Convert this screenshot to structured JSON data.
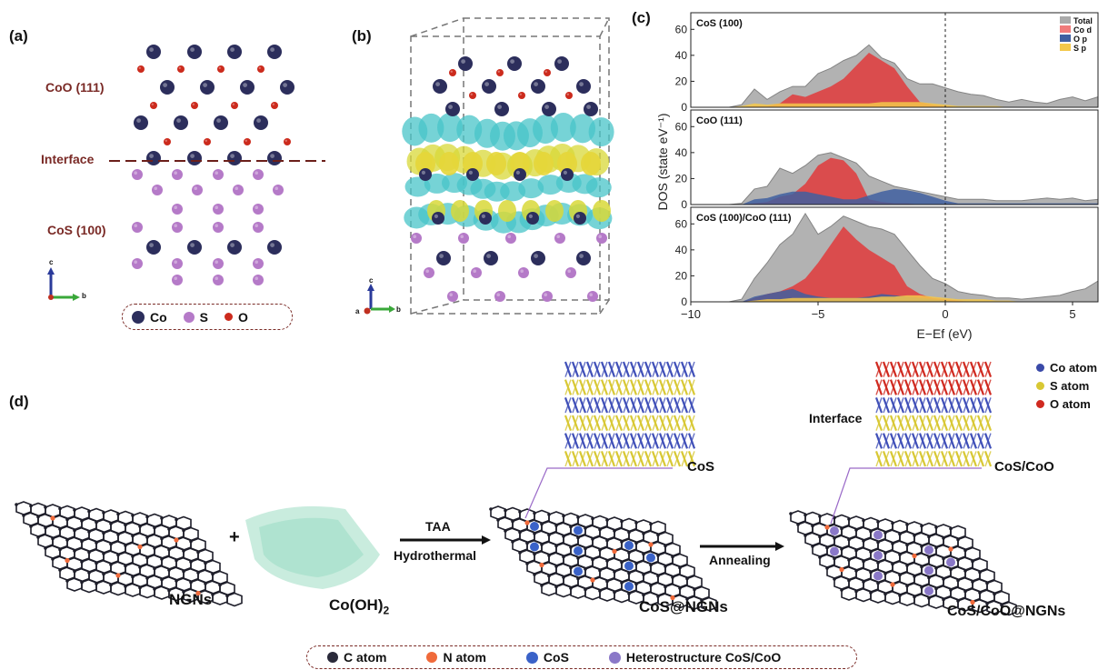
{
  "panel_a": {
    "label": "(a)",
    "coo_label": "CoO (111)",
    "interface_label": "Interface",
    "cos_label": "CoS (100)",
    "axis_c": "c",
    "axis_b": "b",
    "legend": [
      {
        "label": "Co",
        "color": "#2c2e5c"
      },
      {
        "label": "S",
        "color": "#b57ac8"
      },
      {
        "label": "O",
        "color": "#cc2b1d"
      }
    ]
  },
  "panel_b": {
    "label": "(b)",
    "axis_c": "c",
    "axis_a": "a",
    "axis_b": "b"
  },
  "panel_c": {
    "label": "(c)",
    "xlabel": "E−Ef (eV)",
    "ylabel": "DOS (state eV⁻¹)",
    "legend": [
      {
        "label": "Total",
        "color": "#aaaaaa"
      },
      {
        "label": "Co d",
        "color": "#f07b7b"
      },
      {
        "label": "O p",
        "color": "#3f5fa0"
      },
      {
        "label": "S p",
        "color": "#f3c84b"
      }
    ]
  },
  "chart_data": {
    "type": "area",
    "xlabel": "E−Ef (eV)",
    "ylabel": "DOS (state eV⁻¹)",
    "xlim": [
      -10,
      6
    ],
    "xticks": [
      -10,
      -5,
      0,
      5
    ],
    "ylim": [
      0,
      70
    ],
    "yticks": [
      0,
      20,
      40,
      60
    ],
    "panels": [
      {
        "title": "CoS (100)",
        "x": [
          -10,
          -8.5,
          -8,
          -7.5,
          -7,
          -6.5,
          -6,
          -5.5,
          -5,
          -4.5,
          -4,
          -3.5,
          -3,
          -2.5,
          -2,
          -1.5,
          -1,
          -0.5,
          0,
          0.5,
          1,
          1.5,
          2,
          2.5,
          3,
          3.5,
          4,
          4.5,
          5,
          5.5,
          6
        ],
        "series": [
          {
            "name": "Total",
            "values": [
              0,
              0,
              2,
              14,
              6,
              12,
              16,
              16,
              26,
              30,
              36,
              40,
              48,
              38,
              34,
              22,
              18,
              18,
              15,
              12,
              10,
              9,
              6,
              4,
              6,
              4,
              3,
              6,
              8,
              5,
              8
            ]
          },
          {
            "name": "Co d",
            "values": [
              0,
              0,
              0,
              1,
              1,
              3,
              10,
              8,
              12,
              16,
              22,
              32,
              42,
              36,
              30,
              16,
              4,
              2,
              1,
              0,
              0,
              0,
              0,
              0,
              0,
              0,
              0,
              0,
              0,
              0,
              0
            ]
          },
          {
            "name": "O p",
            "values": [
              0,
              0,
              0,
              0,
              0,
              0,
              0,
              0,
              0,
              0,
              0,
              0,
              0,
              0,
              0,
              0,
              0,
              0,
              0,
              0,
              0,
              0,
              0,
              0,
              0,
              0,
              0,
              0,
              0,
              0,
              0
            ]
          },
          {
            "name": "S p",
            "values": [
              0,
              0,
              1,
              3,
              2,
              3,
              3,
              3,
              3,
              3,
              3,
              3,
              3,
              4,
              4,
              4,
              4,
              3,
              2,
              1,
              1,
              1,
              1,
              0,
              0,
              0,
              0,
              0,
              0,
              0,
              0
            ]
          }
        ]
      },
      {
        "title": "CoO (111)",
        "x": [
          -10,
          -8.5,
          -8,
          -7.5,
          -7,
          -6.5,
          -6,
          -5.5,
          -5,
          -4.5,
          -4,
          -3.5,
          -3,
          -2.5,
          -2,
          -1.5,
          -1,
          -0.5,
          0,
          0.5,
          1,
          1.5,
          2,
          2.5,
          3,
          3.5,
          4,
          4.5,
          5,
          5.5,
          6
        ],
        "series": [
          {
            "name": "Total",
            "values": [
              0,
              0,
              1,
              12,
              14,
              28,
              24,
              30,
              38,
              40,
              36,
              32,
              22,
              18,
              14,
              12,
              10,
              8,
              6,
              4,
              4,
              4,
              3,
              3,
              3,
              4,
              5,
              4,
              5,
              3,
              4
            ]
          },
          {
            "name": "Co d",
            "values": [
              0,
              0,
              0,
              1,
              2,
              6,
              8,
              16,
              30,
              36,
              34,
              24,
              4,
              2,
              1,
              1,
              0,
              0,
              0,
              0,
              0,
              0,
              0,
              0,
              0,
              0,
              0,
              0,
              0,
              0,
              0
            ]
          },
          {
            "name": "O p",
            "values": [
              0,
              0,
              0,
              4,
              5,
              8,
              10,
              10,
              8,
              6,
              4,
              4,
              7,
              10,
              12,
              11,
              9,
              6,
              3,
              1,
              1,
              1,
              1,
              1,
              1,
              1,
              1,
              1,
              1,
              1,
              1
            ]
          },
          {
            "name": "S p",
            "values": [
              0,
              0,
              0,
              0,
              0,
              0,
              0,
              0,
              0,
              0,
              0,
              0,
              0,
              0,
              0,
              0,
              0,
              0,
              0,
              0,
              0,
              0,
              0,
              0,
              0,
              0,
              0,
              0,
              0,
              0,
              0
            ]
          }
        ]
      },
      {
        "title": "CoS (100)/CoO (111)",
        "x": [
          -10,
          -8.5,
          -8,
          -7.5,
          -7,
          -6.5,
          -6,
          -5.5,
          -5,
          -4.5,
          -4,
          -3.5,
          -3,
          -2.5,
          -2,
          -1.5,
          -1,
          -0.5,
          0,
          0.5,
          1,
          1.5,
          2,
          2.5,
          3,
          3.5,
          4,
          4.5,
          5,
          5.5,
          6
        ],
        "series": [
          {
            "name": "Total",
            "values": [
              0,
              0,
              2,
              18,
              30,
              44,
              52,
              68,
              52,
              58,
              66,
              62,
              58,
              56,
              52,
              40,
              28,
              18,
              14,
              8,
              6,
              5,
              3,
              3,
              2,
              3,
              4,
              5,
              8,
              10,
              16
            ]
          },
          {
            "name": "Co d",
            "values": [
              0,
              0,
              0,
              3,
              6,
              8,
              12,
              18,
              30,
              44,
              58,
              48,
              40,
              34,
              28,
              12,
              6,
              3,
              2,
              1,
              0,
              0,
              0,
              0,
              0,
              0,
              0,
              0,
              0,
              0,
              0
            ]
          },
          {
            "name": "O p",
            "values": [
              0,
              0,
              0,
              4,
              6,
              8,
              10,
              6,
              4,
              3,
              3,
              3,
              4,
              6,
              5,
              4,
              3,
              2,
              1,
              0,
              0,
              0,
              0,
              0,
              0,
              0,
              0,
              0,
              0,
              0,
              0
            ]
          },
          {
            "name": "S p",
            "values": [
              0,
              0,
              0,
              1,
              2,
              2,
              3,
              3,
              3,
              3,
              3,
              3,
              3,
              4,
              4,
              5,
              5,
              4,
              3,
              2,
              2,
              2,
              1,
              1,
              0,
              0,
              0,
              0,
              0,
              0,
              0
            ]
          }
        ]
      }
    ]
  },
  "panel_d": {
    "label": "(d)",
    "ngns_label": "NGNs",
    "plus": "+",
    "coh_label_main": "Co(OH)",
    "coh_label_sub": "2",
    "step1_top": "TAA",
    "step1_bottom": "Hydrothermal",
    "cos_callout": "CoS",
    "cos_ngns_label": "CoS@NGNs",
    "step2": "Annealing",
    "interface_label": "Interface",
    "cosco_callout": "CoS/CoO",
    "cosco_ngns_label": "CoS/CoO@NGNs",
    "atom_legend": [
      {
        "label": "Co atom",
        "color": "#3a4aa8"
      },
      {
        "label": "S atom",
        "color": "#d8c834"
      },
      {
        "label": "O atom",
        "color": "#d02a20"
      }
    ],
    "bottom_legend": [
      {
        "label": "C atom",
        "color": "#2a2a3a"
      },
      {
        "label": "N atom",
        "color": "#f06a3a"
      },
      {
        "label": "CoS",
        "color": "#3a62c8"
      },
      {
        "label": "Heterostructure CoS/CoO",
        "color": "#8a78c8"
      }
    ]
  }
}
